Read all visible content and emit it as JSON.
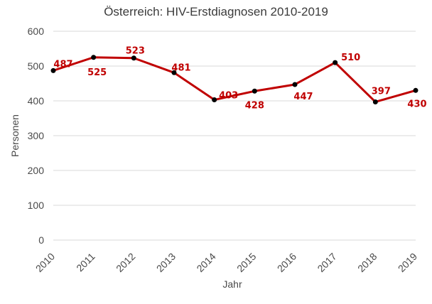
{
  "chart_data": {
    "type": "line",
    "title": "Österreich: HIV-Erstdiagnosen 2010-2019",
    "xlabel": "Jahr",
    "ylabel": "Personen",
    "x": [
      "2010",
      "2011",
      "2012",
      "2013",
      "2014",
      "2015",
      "2016",
      "2017",
      "2018",
      "2019"
    ],
    "ylim": [
      0,
      600
    ],
    "yticks": [
      0,
      100,
      200,
      300,
      400,
      500,
      600
    ],
    "grid": true,
    "legend": "none",
    "series": [
      {
        "color": "#c00000",
        "marker_color": "#000000",
        "values": [
          487,
          525,
          523,
          481,
          403,
          428,
          447,
          510,
          397,
          430
        ],
        "labels": [
          "487",
          "525",
          "523",
          "481",
          "403",
          "428",
          "447",
          "510",
          "397",
          "430"
        ]
      }
    ]
  }
}
